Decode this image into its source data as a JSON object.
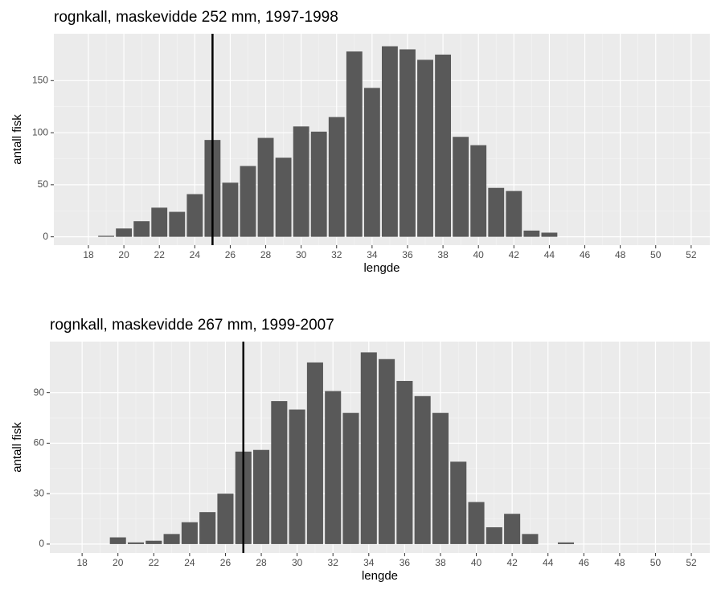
{
  "chart_data": [
    {
      "type": "bar",
      "title": "rognkall, maskevidde 252 mm, 1997-1998",
      "x_label": "lengde",
      "y_label": "antall fisk",
      "x": [
        19,
        20,
        21,
        22,
        23,
        24,
        25,
        26,
        27,
        28,
        29,
        30,
        31,
        32,
        33,
        34,
        35,
        36,
        37,
        38,
        39,
        40,
        41,
        42,
        43,
        44
      ],
      "values": [
        1,
        8,
        15,
        28,
        24,
        41,
        93,
        52,
        68,
        95,
        76,
        106,
        101,
        115,
        178,
        143,
        183,
        180,
        170,
        175,
        96,
        88,
        47,
        44,
        6,
        4
      ],
      "color": "#595959",
      "vline": 25,
      "xlim": [
        16.05,
        53.05
      ],
      "xticks": [
        18,
        20,
        22,
        24,
        26,
        28,
        30,
        32,
        34,
        36,
        38,
        40,
        42,
        44,
        46,
        48,
        50,
        52
      ],
      "ylim": [
        -8,
        195
      ],
      "yticks": [
        0,
        50,
        100,
        150
      ],
      "grid": true
    },
    {
      "type": "bar",
      "title": "rognkall, maskevidde 267 mm, 1999-2007",
      "x_label": "lengde",
      "y_label": "antall fisk",
      "x": [
        20,
        21,
        22,
        23,
        24,
        25,
        26,
        27,
        28,
        29,
        30,
        31,
        32,
        33,
        34,
        35,
        36,
        37,
        38,
        39,
        40,
        41,
        42,
        43,
        44,
        45
      ],
      "values": [
        4,
        1,
        2,
        6,
        13,
        19,
        30,
        55,
        56,
        85,
        80,
        108,
        91,
        78,
        114,
        110,
        97,
        88,
        78,
        49,
        25,
        10,
        18,
        6,
        0,
        1
      ],
      "color": "#595959",
      "vline": 27,
      "xlim": [
        16.2,
        53.03
      ],
      "xticks": [
        18,
        20,
        22,
        24,
        26,
        28,
        30,
        32,
        34,
        36,
        38,
        40,
        42,
        44,
        46,
        48,
        50,
        52
      ],
      "ylim": [
        -5.3,
        120.4
      ],
      "yticks": [
        0,
        30,
        60,
        90
      ],
      "grid": true
    }
  ]
}
